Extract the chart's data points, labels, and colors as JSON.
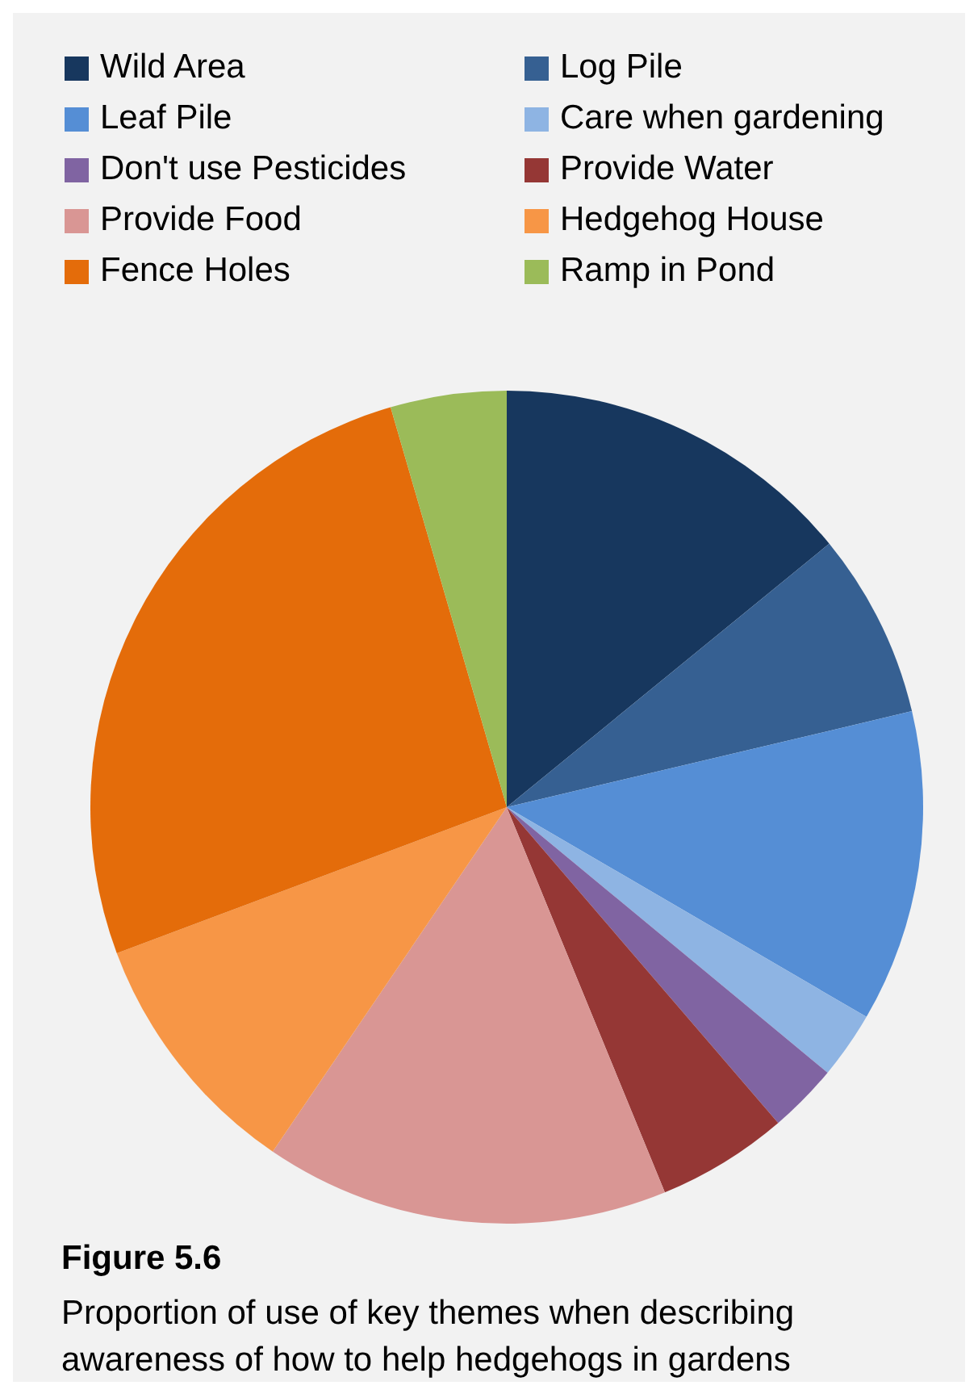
{
  "chart_data": {
    "type": "pie",
    "title": "Figure 5.6",
    "subtitle": "Proportion of use of key themes when describing awareness of how to help hedgehogs in gardens",
    "categories": [
      "Wild Area",
      "Log Pile",
      "Leaf Pile",
      "Care when gardening",
      "Don't use Pesticides",
      "Provide Water",
      "Provide Food",
      "Hedgehog House",
      "Fence Holes",
      "Ramp in Pond"
    ],
    "values": [
      14.1,
      7.2,
      12.1,
      2.6,
      2.7,
      5.1,
      15.7,
      9.8,
      26.2,
      4.5
    ],
    "colors": [
      "#17375e",
      "#366092",
      "#558ed5",
      "#8eb4e3",
      "#8064a2",
      "#953735",
      "#d99694",
      "#f79646",
      "#e46c0a",
      "#9bbb59"
    ],
    "legend": "top"
  }
}
